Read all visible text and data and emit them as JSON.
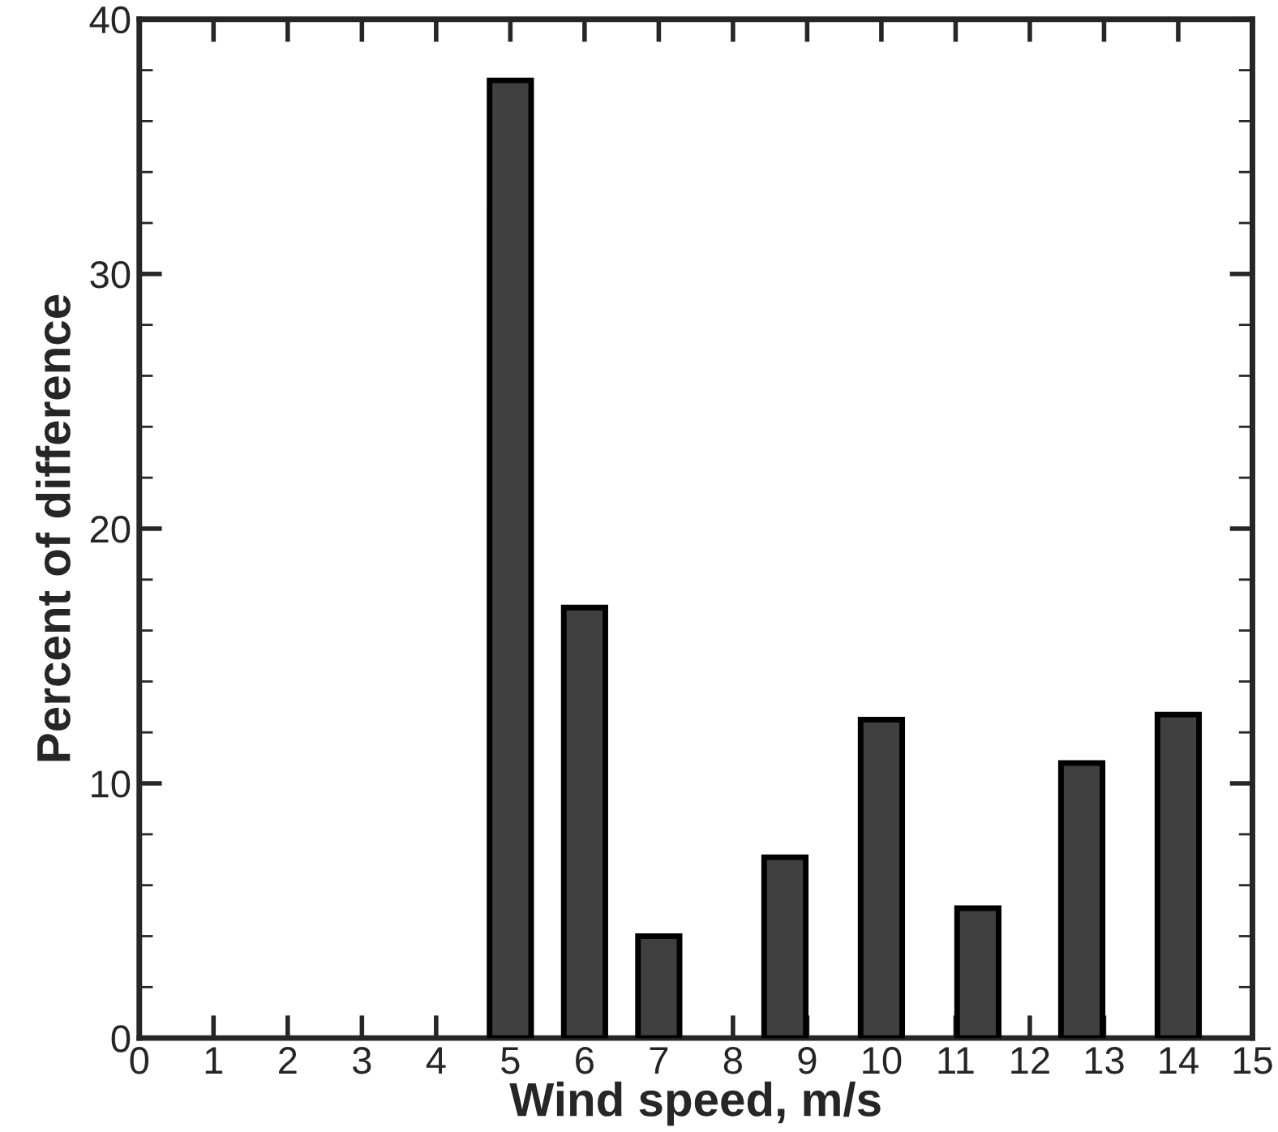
{
  "chart_data": {
    "type": "bar",
    "xlabel": "Wind speed, m/s",
    "ylabel": "Percent of difference",
    "x": [
      5,
      6,
      7,
      8.7,
      10,
      11.3,
      12.7,
      14
    ],
    "values": [
      37.6,
      16.9,
      4,
      7.1,
      12.5,
      5.1,
      10.8,
      12.7
    ],
    "color": "#404040",
    "xlim": [
      0,
      15
    ],
    "xticks": [
      0,
      1,
      2,
      3,
      4,
      5,
      6,
      7,
      8,
      9,
      10,
      11,
      12,
      13,
      14,
      15
    ],
    "ylim": [
      0,
      40
    ],
    "yticks": [
      0,
      10,
      20,
      30,
      40
    ],
    "grid": false,
    "legend": false
  }
}
